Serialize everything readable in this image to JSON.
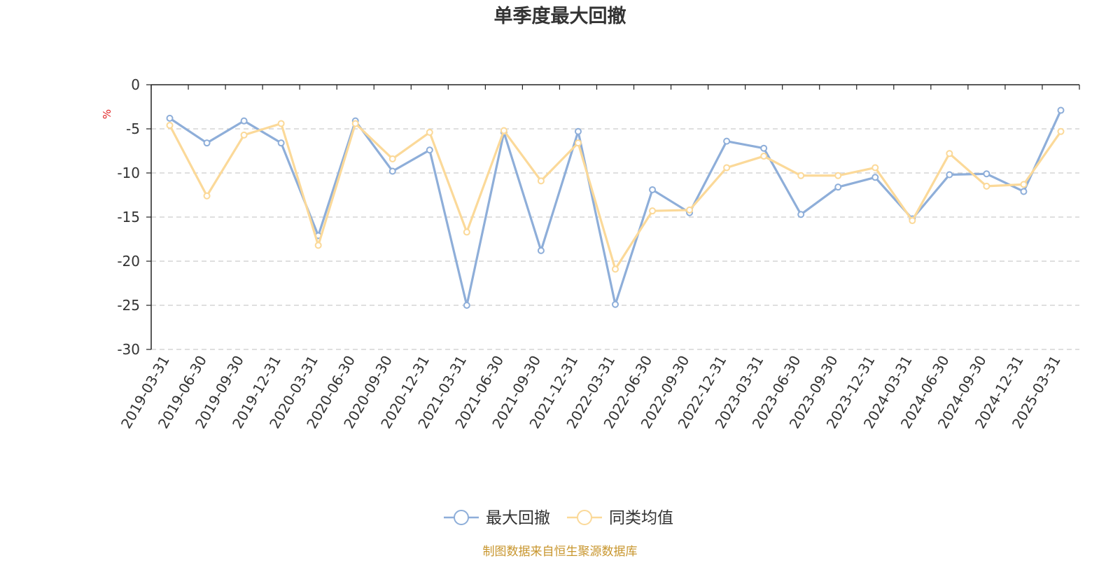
{
  "chart_data": {
    "type": "line",
    "title": "单季度最大回撤",
    "ylabel": "%",
    "xlabel": "",
    "ylim": [
      -30,
      0
    ],
    "yticks": [
      0,
      -5,
      -10,
      -15,
      -20,
      -25,
      -30
    ],
    "grid": true,
    "legend_position": "bottom-center",
    "categories": [
      "2019-03-31",
      "2019-06-30",
      "2019-09-30",
      "2019-12-31",
      "2020-03-31",
      "2020-06-30",
      "2020-09-30",
      "2020-12-31",
      "2021-03-31",
      "2021-06-30",
      "2021-09-30",
      "2021-12-31",
      "2022-03-31",
      "2022-06-30",
      "2022-09-30",
      "2022-12-31",
      "2023-03-31",
      "2023-06-30",
      "2023-09-30",
      "2023-12-31",
      "2024-03-31",
      "2024-06-30",
      "2024-09-30",
      "2024-12-31",
      "2025-03-31"
    ],
    "series": [
      {
        "name": "最大回撤",
        "color": "#8eaed9",
        "values": [
          -3.8,
          -6.6,
          -4.1,
          -6.6,
          -17.1,
          -4.1,
          -9.8,
          -7.4,
          -25.0,
          -5.4,
          -18.8,
          -5.3,
          -24.9,
          -11.9,
          -14.5,
          -6.4,
          -7.2,
          -14.7,
          -11.6,
          -10.5,
          -15.2,
          -10.2,
          -10.1,
          -12.1,
          -2.9
        ]
      },
      {
        "name": "同类均值",
        "color": "#fbd999",
        "values": [
          -4.6,
          -12.6,
          -5.7,
          -4.4,
          -18.2,
          -4.4,
          -8.4,
          -5.4,
          -16.7,
          -5.2,
          -10.9,
          -6.6,
          -20.9,
          -14.3,
          -14.2,
          -9.4,
          -8.1,
          -10.3,
          -10.3,
          -9.4,
          -15.4,
          -7.8,
          -11.5,
          -11.3,
          -5.3
        ]
      }
    ]
  },
  "footer": {
    "source": "制图数据来自恒生聚源数据库"
  },
  "colors": {
    "title": "#333333",
    "axis": "#222222",
    "grid": "#cccccc",
    "ylabel": "#e02020",
    "source": "#c8962e"
  }
}
